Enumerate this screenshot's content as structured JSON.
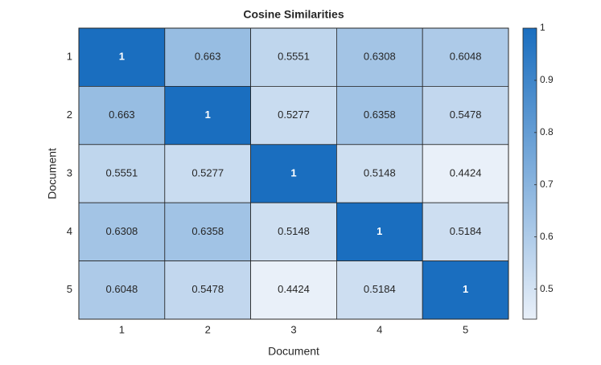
{
  "chart_data": {
    "type": "heatmap",
    "title": "Cosine Similarities",
    "xlabel": "Document",
    "ylabel": "Document",
    "xcategories": [
      "1",
      "2",
      "3",
      "4",
      "5"
    ],
    "ycategories": [
      "1",
      "2",
      "3",
      "4",
      "5"
    ],
    "values": [
      [
        1,
        0.663,
        0.5551,
        0.6308,
        0.6048
      ],
      [
        0.663,
        1,
        0.5277,
        0.6358,
        0.5478
      ],
      [
        0.5551,
        0.5277,
        1,
        0.5148,
        0.4424
      ],
      [
        0.6308,
        0.6358,
        0.5148,
        1,
        0.5184
      ],
      [
        0.6048,
        0.5478,
        0.4424,
        0.5184,
        1
      ]
    ],
    "colormap": [
      "#e9f0f9",
      "#1a6ebf"
    ],
    "clim": [
      0.4424,
      1
    ],
    "cticks": [
      0.5,
      0.6,
      0.7,
      0.8,
      0.9,
      1
    ]
  }
}
